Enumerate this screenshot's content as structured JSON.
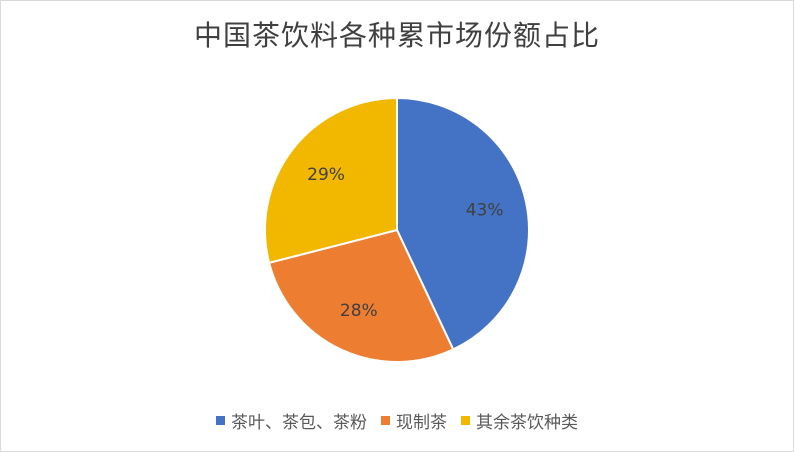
{
  "chart_data": {
    "type": "pie",
    "title": "中国茶饮料各种累市场份额占比",
    "categories": [
      "茶叶、茶包、茶粉",
      "现制茶",
      "其余茶饮种类"
    ],
    "values": [
      43,
      28,
      29
    ],
    "value_labels": [
      "43%",
      "28%",
      "29%"
    ],
    "colors": [
      "#4472C4",
      "#ED7D31",
      "#F2B800"
    ],
    "legend_position": "bottom"
  }
}
